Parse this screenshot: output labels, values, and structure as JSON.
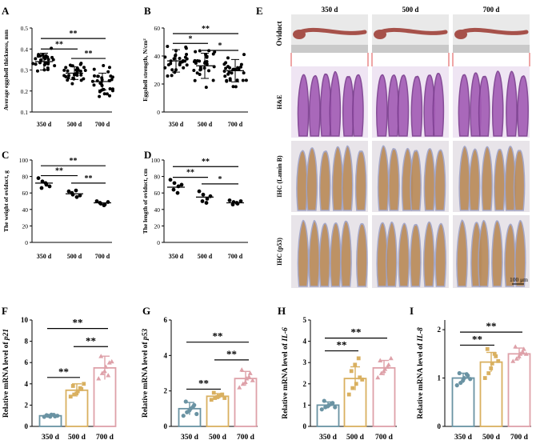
{
  "colors": {
    "ink": "#000000",
    "he_bg": "#efe5f3",
    "he_tissue": "#a25bb4",
    "ihc_bg": "#e8e4e9",
    "ihc_tissue": "#b98a57",
    "ihc_blue": "#9ea2c6",
    "oviduct_bg": "#e9e9e9",
    "oviduct_tissue": "#a6514a",
    "connector": "#d82020",
    "bar_colors": [
      "#6a93a3",
      "#d9b060",
      "#dea1a9"
    ]
  },
  "panel_e": {
    "label": "E",
    "col_headers": [
      "350 d",
      "500 d",
      "700 d"
    ],
    "row_labels": [
      "Oviduct",
      "H&E",
      "IHC (Lamin B)",
      "IHC (p53)"
    ],
    "scale_bar": "100 μm"
  },
  "chart_data": [
    {
      "id": "A",
      "type": "scatter",
      "ylabel": "Average eggshell thickness, mm",
      "categories": [
        "350 d",
        "500 d",
        "700 d"
      ],
      "yticks": [
        "0.1",
        "0.2",
        "0.3",
        "0.4",
        "0.5"
      ],
      "ylim": [
        0.1,
        0.5
      ],
      "means": [
        0.34,
        0.285,
        0.245
      ],
      "sd": [
        0.04,
        0.03,
        0.04
      ],
      "n": 30,
      "spread": [
        0.05,
        0.045,
        0.06
      ],
      "significance": [
        {
          "from": 0,
          "to": 1,
          "level": 0.4,
          "label": "**"
        },
        {
          "from": 1,
          "to": 2,
          "level": 0.355,
          "label": "**"
        },
        {
          "from": 0,
          "to": 2,
          "level": 0.45,
          "label": "**"
        }
      ]
    },
    {
      "id": "B",
      "type": "scatter",
      "ylabel": "Eggshell strength, N/cm²",
      "categories": [
        "350 d",
        "500 d",
        "700 d"
      ],
      "yticks": [
        "0",
        "20",
        "40",
        "60"
      ],
      "ylim": [
        0,
        60
      ],
      "means": [
        36.5,
        33,
        29.5
      ],
      "sd": [
        8,
        9,
        8
      ],
      "n": 30,
      "spread": [
        10,
        11,
        10
      ],
      "significance": [
        {
          "from": 0,
          "to": 1,
          "level": 49,
          "label": "*"
        },
        {
          "from": 1,
          "to": 2,
          "level": 44,
          "label": "*"
        },
        {
          "from": 0,
          "to": 2,
          "level": 56,
          "label": "**"
        }
      ]
    },
    {
      "id": "C",
      "type": "scatter",
      "ylabel": "The weight of oviduct, g",
      "categories": [
        "350 d",
        "500 d",
        "700 d"
      ],
      "yticks": [
        "0",
        "20",
        "40",
        "60",
        "80",
        "100"
      ],
      "ylim": [
        0,
        100
      ],
      "means": [
        72,
        59,
        48
      ],
      "points": [
        [
          78,
          74,
          70,
          66,
          72,
          68
        ],
        [
          62,
          58,
          55,
          60,
          63,
          57
        ],
        [
          50,
          47,
          46,
          48,
          45,
          49
        ]
      ],
      "significance": [
        {
          "from": 0,
          "to": 1,
          "level": 81,
          "label": "**"
        },
        {
          "from": 1,
          "to": 2,
          "level": 72,
          "label": "**"
        },
        {
          "from": 0,
          "to": 2,
          "level": 93,
          "label": "**"
        }
      ]
    },
    {
      "id": "D",
      "type": "scatter",
      "ylabel": "The length of oviduct, cm",
      "categories": [
        "350 d",
        "500 d",
        "700 d"
      ],
      "yticks": [
        "0",
        "20",
        "40",
        "60",
        "80",
        "100"
      ],
      "ylim": [
        0,
        100
      ],
      "means": [
        67,
        55,
        48
      ],
      "points": [
        [
          76,
          72,
          68,
          64,
          60,
          70
        ],
        [
          62,
          58,
          53,
          50,
          48,
          56
        ],
        [
          51,
          49,
          47,
          46,
          48,
          50
        ]
      ],
      "significance": [
        {
          "from": 0,
          "to": 1,
          "level": 79,
          "label": "**"
        },
        {
          "from": 1,
          "to": 2,
          "level": 71,
          "label": "*"
        },
        {
          "from": 0,
          "to": 2,
          "level": 92,
          "label": "**"
        }
      ]
    },
    {
      "id": "F",
      "type": "bar",
      "ylabel_prefix": "Relative mRNA level of ",
      "gene": "p21",
      "categories": [
        "350 d",
        "500 d",
        "700 d"
      ],
      "yticks": [
        "0",
        "2",
        "4",
        "6",
        "8",
        "10"
      ],
      "ylim": [
        0,
        10
      ],
      "values": [
        1.0,
        3.4,
        5.5
      ],
      "errors": [
        0.12,
        0.6,
        1.1
      ],
      "points": [
        [
          0.9,
          1.0,
          1.1,
          0.95,
          1.05,
          0.92,
          1.08,
          1.0
        ],
        [
          2.8,
          3.0,
          3.3,
          3.5,
          3.8,
          3.1,
          3.6,
          4.0
        ],
        [
          4.5,
          5.0,
          5.6,
          6.0,
          6.6,
          5.2,
          4.8,
          6.1
        ]
      ],
      "significance": [
        {
          "from": 0,
          "to": 1,
          "level": 4.6,
          "label": "**"
        },
        {
          "from": 1,
          "to": 2,
          "level": 7.5,
          "label": "**"
        },
        {
          "from": 0,
          "to": 2,
          "level": 9.2,
          "label": "**"
        }
      ]
    },
    {
      "id": "G",
      "type": "bar",
      "ylabel_prefix": "Relative mRNA level of ",
      "gene": "p53",
      "categories": [
        "350 d",
        "500 d",
        "700 d"
      ],
      "yticks": [
        "0",
        "2",
        "4",
        "6"
      ],
      "ylim": [
        0,
        6
      ],
      "values": [
        1.0,
        1.7,
        2.7
      ],
      "errors": [
        0.35,
        0.15,
        0.4
      ],
      "points": [
        [
          0.6,
          0.8,
          1.0,
          1.2,
          1.4,
          0.9,
          1.1,
          0.7
        ],
        [
          1.5,
          1.6,
          1.7,
          1.8,
          1.9,
          1.65,
          1.75,
          1.6
        ],
        [
          2.2,
          2.4,
          2.7,
          3.0,
          3.2,
          2.5,
          2.8,
          2.6
        ]
      ],
      "significance": [
        {
          "from": 0,
          "to": 1,
          "level": 2.1,
          "label": "**"
        },
        {
          "from": 1,
          "to": 2,
          "level": 3.75,
          "label": "**"
        },
        {
          "from": 0,
          "to": 2,
          "level": 4.75,
          "label": "**"
        }
      ]
    },
    {
      "id": "H",
      "type": "bar",
      "ylabel_prefix": "Relative mRNA level of ",
      "gene": "IL-6",
      "categories": [
        "350 d",
        "500 d",
        "700 d"
      ],
      "yticks": [
        "0",
        "1",
        "2",
        "3",
        "4",
        "5"
      ],
      "ylim": [
        0,
        5
      ],
      "values": [
        1.0,
        2.25,
        2.75
      ],
      "errors": [
        0.15,
        0.55,
        0.35
      ],
      "points": [
        [
          0.8,
          0.9,
          1.0,
          1.1,
          1.2,
          0.95,
          1.05,
          0.9
        ],
        [
          1.5,
          1.8,
          2.0,
          2.3,
          2.6,
          2.9,
          3.2,
          2.2
        ],
        [
          2.3,
          2.5,
          2.7,
          2.9,
          3.1,
          2.6,
          2.8,
          3.2
        ]
      ],
      "significance": [
        {
          "from": 0,
          "to": 1,
          "level": 3.55,
          "label": "**"
        },
        {
          "from": 0,
          "to": 2,
          "level": 4.15,
          "label": "**"
        }
      ]
    },
    {
      "id": "I",
      "type": "bar",
      "ylabel_prefix": "Relative mRNA level of ",
      "gene": "IL-8",
      "categories": [
        "350 d",
        "500 d",
        "700 d"
      ],
      "yticks": [
        "0",
        "1",
        "2"
      ],
      "ylim": [
        0,
        2.2
      ],
      "values": [
        1.0,
        1.33,
        1.5
      ],
      "errors": [
        0.1,
        0.2,
        0.12
      ],
      "points": [
        [
          0.85,
          0.9,
          1.0,
          1.05,
          1.1,
          0.95,
          1.08,
          0.98
        ],
        [
          1.0,
          1.1,
          1.3,
          1.45,
          1.6,
          1.2,
          1.5,
          1.35
        ],
        [
          1.35,
          1.4,
          1.5,
          1.6,
          1.65,
          1.45,
          1.55,
          1.5
        ]
      ],
      "significance": [
        {
          "from": 0,
          "to": 1,
          "level": 1.68,
          "label": "**"
        },
        {
          "from": 0,
          "to": 2,
          "level": 1.95,
          "label": "**"
        }
      ]
    }
  ]
}
